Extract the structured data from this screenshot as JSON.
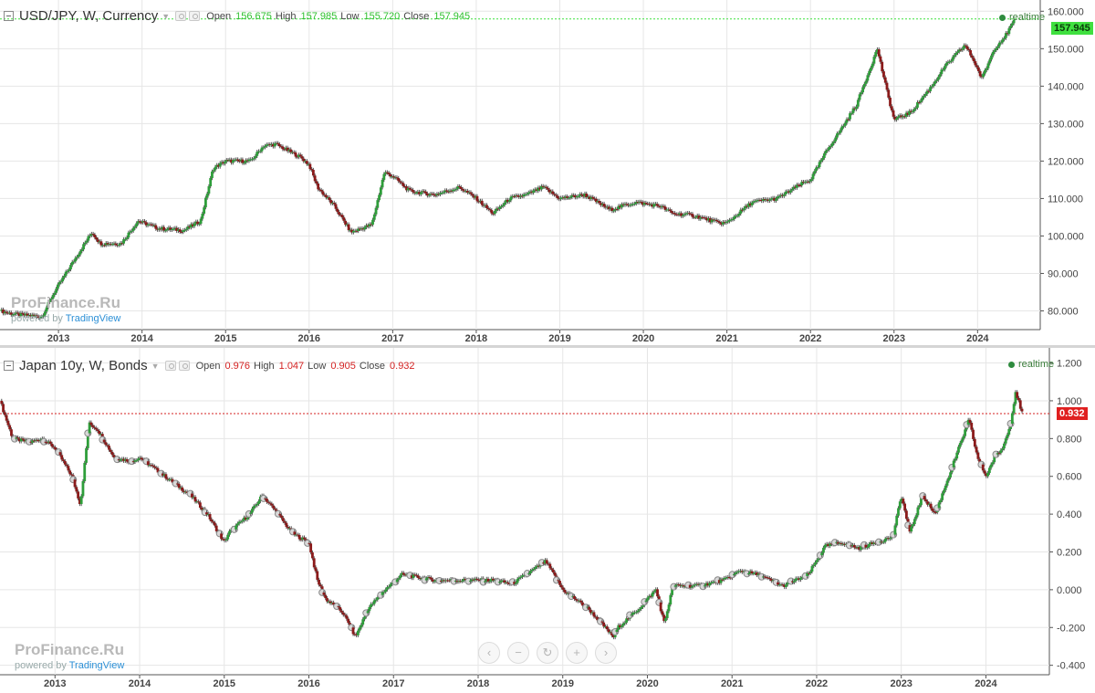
{
  "colors": {
    "up": "#2e9e3a",
    "down": "#8b1a1a",
    "grid": "#e6e6e6",
    "jpy_price": "#3fe03f",
    "jgb_price": "#d42222",
    "axis": "#444444"
  },
  "top": {
    "title": "USD/JPY, W, Currency",
    "open_label": "Open",
    "open": "156.675",
    "high_label": "High",
    "high": "157.985",
    "low_label": "Low",
    "low": "155.720",
    "close_label": "Close",
    "close": "157.945",
    "realtime": "realtime",
    "price_tag": "157.945",
    "watermark": "ProFinance.Ru",
    "powered_by": "powered by",
    "tradingview": "TradingView"
  },
  "bottom": {
    "title": "Japan 10y, W, Bonds",
    "open_label": "Open",
    "open": "0.976",
    "high_label": "High",
    "high": "1.047",
    "low_label": "Low",
    "low": "0.905",
    "close_label": "Close",
    "close": "0.932",
    "realtime": "realtime",
    "price_tag": "0.932",
    "watermark": "ProFinance.Ru",
    "powered_by": "powered by",
    "tradingview": "TradingView"
  },
  "nav_buttons": [
    {
      "name": "scroll-left-button",
      "glyph": "‹"
    },
    {
      "name": "zoom-out-button",
      "glyph": "−"
    },
    {
      "name": "reset-button",
      "glyph": "↻"
    },
    {
      "name": "zoom-in-button",
      "glyph": "+"
    },
    {
      "name": "scroll-right-button",
      "glyph": "›"
    }
  ],
  "chart_data": [
    {
      "type": "line",
      "title": "USD/JPY, W, Currency",
      "series": [
        {
          "name": "USD/JPY",
          "x": [
            2012.3,
            2012.5,
            2012.8,
            2012.95,
            2013.2,
            2013.4,
            2013.5,
            2013.75,
            2013.95,
            2014.2,
            2014.5,
            2014.7,
            2014.85,
            2015.0,
            2015.3,
            2015.45,
            2015.6,
            2015.9,
            2016.0,
            2016.1,
            2016.3,
            2016.5,
            2016.75,
            2016.9,
            2017.0,
            2017.2,
            2017.5,
            2017.8,
            2018.0,
            2018.2,
            2018.4,
            2018.6,
            2018.8,
            2019.0,
            2019.3,
            2019.6,
            2019.9,
            2020.2,
            2020.35,
            2020.6,
            2020.9,
            2021.0,
            2021.3,
            2021.6,
            2021.9,
            2022.0,
            2022.2,
            2022.35,
            2022.55,
            2022.8,
            2022.9,
            2023.0,
            2023.2,
            2023.45,
            2023.6,
            2023.85,
            2023.95,
            2024.05,
            2024.2,
            2024.35,
            2024.45
          ],
          "values": [
            80,
            79,
            78.5,
            85,
            94,
            101,
            98,
            98,
            104,
            102,
            101.5,
            104,
            118,
            120,
            120,
            124,
            124.5,
            121,
            119,
            113,
            108,
            101,
            103,
            117,
            116,
            112,
            111,
            113,
            110,
            106,
            110,
            111,
            113,
            110,
            111,
            107,
            109,
            108,
            106,
            105.5,
            103.5,
            103.5,
            109,
            110,
            114,
            115,
            123,
            128,
            135,
            150,
            140,
            131,
            133,
            140,
            145,
            151,
            147,
            142,
            150,
            154,
            157.945
          ]
        }
      ],
      "x_ticks": [
        "2013",
        "2014",
        "2015",
        "2016",
        "2017",
        "2018",
        "2019",
        "2020",
        "2021",
        "2022",
        "2023",
        "2024"
      ],
      "y_ticks": [
        "80.000",
        "90.000",
        "100.000",
        "110.000",
        "120.000",
        "130.000",
        "140.000",
        "150.000",
        "160.000"
      ],
      "ylim": [
        75,
        163
      ],
      "xlim": [
        2012.3,
        2024.75
      ],
      "last_price": 157.945,
      "grid": true
    },
    {
      "type": "line",
      "title": "Japan 10y, W, Bonds",
      "series": [
        {
          "name": "Japan 10y",
          "x": [
            2012.35,
            2012.5,
            2012.7,
            2012.85,
            2013.0,
            2013.2,
            2013.3,
            2013.4,
            2013.5,
            2013.7,
            2013.9,
            2014.0,
            2014.3,
            2014.6,
            2014.8,
            2015.0,
            2015.05,
            2015.3,
            2015.45,
            2015.6,
            2015.8,
            2016.0,
            2016.1,
            2016.2,
            2016.4,
            2016.55,
            2016.7,
            2016.9,
            2017.1,
            2017.5,
            2017.9,
            2018.2,
            2018.4,
            2018.7,
            2018.8,
            2019.0,
            2019.3,
            2019.6,
            2019.65,
            2019.9,
            2020.1,
            2020.2,
            2020.3,
            2020.6,
            2020.9,
            2021.1,
            2021.3,
            2021.6,
            2021.9,
            2022.1,
            2022.3,
            2022.5,
            2022.7,
            2022.9,
            2023.0,
            2023.1,
            2023.25,
            2023.4,
            2023.6,
            2023.8,
            2023.9,
            2024.0,
            2024.1,
            2024.2,
            2024.3,
            2024.35,
            2024.43
          ],
          "values": [
            1.0,
            0.8,
            0.78,
            0.8,
            0.75,
            0.6,
            0.45,
            0.88,
            0.85,
            0.7,
            0.68,
            0.7,
            0.6,
            0.5,
            0.4,
            0.25,
            0.3,
            0.4,
            0.5,
            0.42,
            0.3,
            0.25,
            0.05,
            -0.05,
            -0.12,
            -0.25,
            -0.1,
            0.0,
            0.08,
            0.05,
            0.05,
            0.05,
            0.03,
            0.12,
            0.15,
            0.0,
            -0.1,
            -0.25,
            -0.2,
            -0.1,
            0.0,
            -0.18,
            0.02,
            0.02,
            0.05,
            0.1,
            0.08,
            0.02,
            0.08,
            0.23,
            0.25,
            0.22,
            0.25,
            0.28,
            0.5,
            0.3,
            0.5,
            0.4,
            0.65,
            0.9,
            0.7,
            0.6,
            0.7,
            0.75,
            0.9,
            1.05,
            0.932
          ]
        }
      ],
      "x_ticks": [
        "2013",
        "2014",
        "2015",
        "2016",
        "2017",
        "2018",
        "2019",
        "2020",
        "2021",
        "2022",
        "2023",
        "2024"
      ],
      "y_ticks": [
        "-0.400",
        "-0.200",
        "0.000",
        "0.200",
        "0.400",
        "0.600",
        "0.800",
        "1.000",
        "1.200"
      ],
      "ylim": [
        -0.45,
        1.28
      ],
      "xlim": [
        2012.35,
        2024.75
      ],
      "last_price": 0.932,
      "grid": true
    }
  ]
}
